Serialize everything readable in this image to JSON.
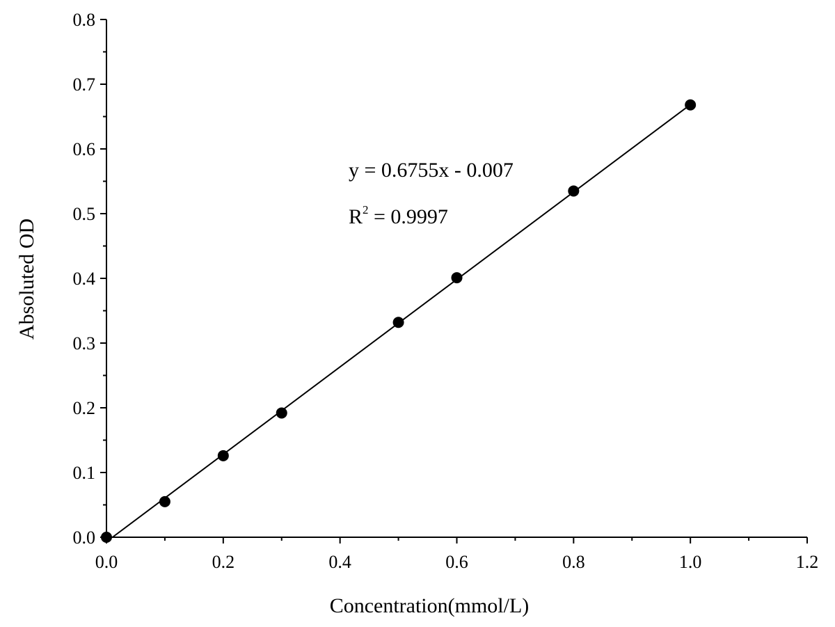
{
  "chart_data": {
    "type": "scatter",
    "xlabel": "Concentration(mmol/L)",
    "ylabel": "Absoluted OD",
    "xlim": [
      0,
      1.2
    ],
    "ylim": [
      0,
      0.8
    ],
    "x_ticks": [
      "0.0",
      "0.2",
      "0.4",
      "0.6",
      "0.8",
      "1.0",
      "1.2"
    ],
    "y_ticks": [
      "0.0",
      "0.1",
      "0.2",
      "0.3",
      "0.4",
      "0.5",
      "0.6",
      "0.7",
      "0.8"
    ],
    "grid": false,
    "series": [
      {
        "x": [
          0,
          0.1,
          0.2,
          0.3,
          0.5,
          0.6,
          0.8,
          1.0
        ],
        "y": [
          0.0,
          0.055,
          0.126,
          0.192,
          0.332,
          0.401,
          0.535,
          0.668
        ]
      }
    ],
    "trendline": {
      "slope": 0.6755,
      "intercept": -0.007,
      "x_range": [
        0,
        1.0
      ]
    },
    "annotations": {
      "equation": "y = 0.6755x - 0.007",
      "r2_prefix": "R",
      "r2_sup": "2",
      "r2_value": " = 0.9997"
    },
    "colors": {
      "marker": "#000000",
      "line": "#000000",
      "axis": "#000000"
    }
  }
}
